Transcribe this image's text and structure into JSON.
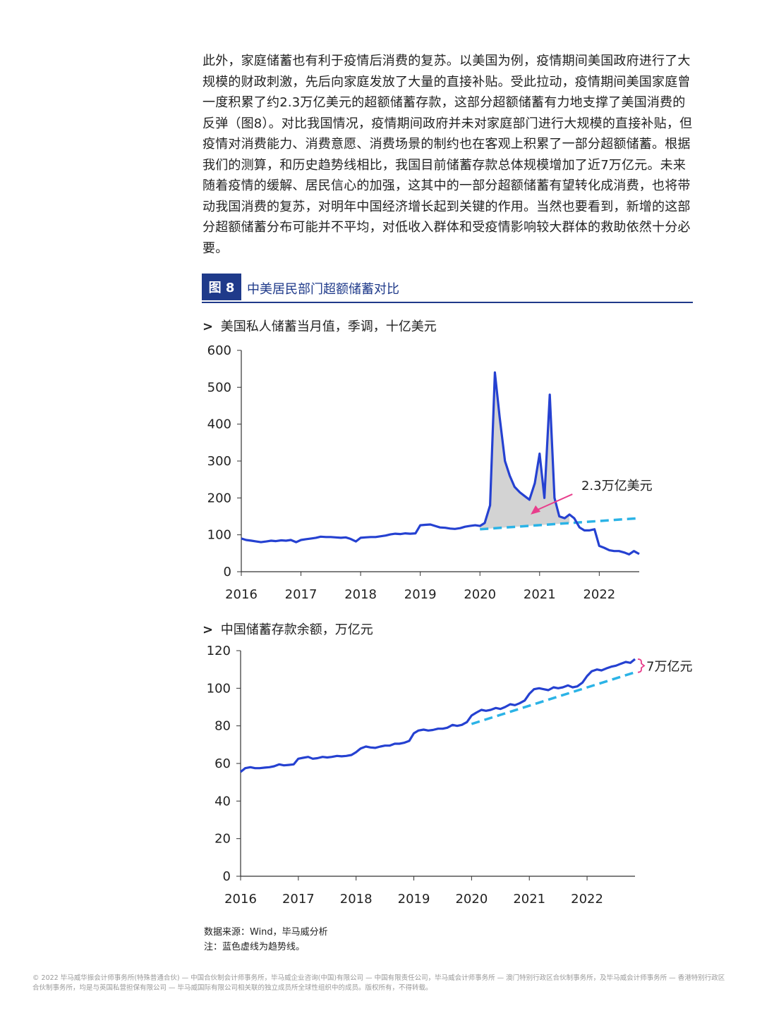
{
  "paragraph": "此外，家庭储蓄也有利于疫情后消费的复苏。以美国为例，疫情期间美国政府进行了大规模的财政刺激，先后向家庭发放了大量的直接补贴。受此拉动，疫情期间美国家庭曾一度积累了约2.3万亿美元的超额储蓄存款，这部分超额储蓄有力地支撑了美国消费的反弹（图8）。对比我国情况，疫情期间政府并未对家庭部门进行大规模的直接补贴，但疫情对消费能力、消费意愿、消费场景的制约也在客观上积累了一部分超额储蓄。根据我们的测算，和历史趋势线相比，我国目前储蓄存款总体规模增加了近7万亿元。未来随着疫情的缓解、居民信心的加强，这其中的一部分超额储蓄有望转化成消费，也将带动我国消费的复苏，对明年中国经济增长起到关键的作用。当然也要看到，新增的这部分超额储蓄分布可能并不平均，对低收入群体和受疫情影响较大群体的救助依然十分必要。",
  "figure": {
    "badge": "图 8",
    "title": "中美居民部门超额储蓄对比"
  },
  "colors": {
    "line": "#2541d1",
    "trend": "#2bb3e6",
    "fill": "#d3d3d3",
    "annot": "#e83e8c",
    "header": "#1f3a8a"
  },
  "chart_data": [
    {
      "type": "line",
      "title": "美国私人储蓄当月值，季调，十亿美元",
      "xlabel": "",
      "ylabel": "",
      "x_ticks": [
        "2016",
        "2017",
        "2018",
        "2019",
        "2020",
        "2021",
        "2022"
      ],
      "y_ticks": [
        "0",
        "100",
        "200",
        "300",
        "400",
        "500",
        "600"
      ],
      "ylim": [
        0,
        600
      ],
      "xlim": [
        2016.0,
        2022.67
      ],
      "annotation": "2.3万亿美元",
      "series": [
        {
          "style": "solid",
          "x": [
            2016.0,
            2016.08,
            2016.17,
            2016.25,
            2016.33,
            2016.42,
            2016.5,
            2016.58,
            2016.67,
            2016.75,
            2016.83,
            2016.92,
            2017.0,
            2017.08,
            2017.17,
            2017.25,
            2017.33,
            2017.42,
            2017.5,
            2017.58,
            2017.67,
            2017.75,
            2017.83,
            2017.92,
            2018.0,
            2018.08,
            2018.17,
            2018.25,
            2018.33,
            2018.42,
            2018.5,
            2018.58,
            2018.67,
            2018.75,
            2018.83,
            2018.92,
            2019.0,
            2019.08,
            2019.17,
            2019.25,
            2019.33,
            2019.42,
            2019.5,
            2019.58,
            2019.67,
            2019.75,
            2019.83,
            2019.92,
            2020.0,
            2020.08,
            2020.17,
            2020.25,
            2020.33,
            2020.42,
            2020.5,
            2020.58,
            2020.67,
            2020.75,
            2020.83,
            2020.92,
            2021.0,
            2021.08,
            2021.17,
            2021.25,
            2021.33,
            2021.42,
            2021.5,
            2021.58,
            2021.67,
            2021.75,
            2021.83,
            2021.92,
            2022.0,
            2022.08,
            2022.17,
            2022.25,
            2022.33,
            2022.42,
            2022.5,
            2022.58,
            2022.67
          ],
          "y": [
            90,
            86,
            84,
            82,
            80,
            82,
            84,
            83,
            85,
            84,
            86,
            80,
            86,
            88,
            90,
            92,
            95,
            94,
            94,
            93,
            92,
            93,
            89,
            82,
            92,
            93,
            94,
            94,
            96,
            98,
            101,
            103,
            102,
            104,
            103,
            104,
            126,
            127,
            128,
            124,
            120,
            119,
            117,
            116,
            118,
            122,
            124,
            126,
            124,
            132,
            180,
            540,
            420,
            300,
            260,
            230,
            215,
            205,
            195,
            240,
            320,
            200,
            480,
            200,
            150,
            145,
            155,
            145,
            120,
            112,
            112,
            115,
            70,
            65,
            58,
            56,
            56,
            52,
            47,
            56,
            48
          ]
        },
        {
          "style": "dashed",
          "x": [
            2020.0,
            2022.67
          ],
          "y": [
            115,
            145
          ]
        }
      ]
    },
    {
      "type": "line",
      "title": "中国储蓄存款余额，万亿元",
      "xlabel": "",
      "ylabel": "",
      "x_ticks": [
        "2016",
        "2017",
        "2018",
        "2019",
        "2020",
        "2021",
        "2022"
      ],
      "y_ticks": [
        "0",
        "20",
        "40",
        "60",
        "80",
        "100",
        "120"
      ],
      "ylim": [
        0,
        120
      ],
      "xlim": [
        2016.0,
        2022.83
      ],
      "annotation": "7万亿元",
      "series": [
        {
          "style": "solid",
          "x": [
            2016.0,
            2016.08,
            2016.17,
            2016.25,
            2016.33,
            2016.42,
            2016.5,
            2016.58,
            2016.67,
            2016.75,
            2016.83,
            2016.92,
            2017.0,
            2017.08,
            2017.17,
            2017.25,
            2017.33,
            2017.42,
            2017.5,
            2017.58,
            2017.67,
            2017.75,
            2017.83,
            2017.92,
            2018.0,
            2018.08,
            2018.17,
            2018.25,
            2018.33,
            2018.42,
            2018.5,
            2018.58,
            2018.67,
            2018.75,
            2018.83,
            2018.92,
            2019.0,
            2019.08,
            2019.17,
            2019.25,
            2019.33,
            2019.42,
            2019.5,
            2019.58,
            2019.67,
            2019.75,
            2019.83,
            2019.92,
            2020.0,
            2020.08,
            2020.17,
            2020.25,
            2020.33,
            2020.42,
            2020.5,
            2020.58,
            2020.67,
            2020.75,
            2020.83,
            2020.92,
            2021.0,
            2021.08,
            2021.17,
            2021.25,
            2021.33,
            2021.42,
            2021.5,
            2021.58,
            2021.67,
            2021.75,
            2021.83,
            2021.92,
            2022.0,
            2022.08,
            2022.17,
            2022.25,
            2022.33,
            2022.42,
            2022.5,
            2022.58,
            2022.67,
            2022.75,
            2022.83
          ],
          "y": [
            55.5,
            57.5,
            58.0,
            57.5,
            57.5,
            57.8,
            58.0,
            58.5,
            59.5,
            59.0,
            59.2,
            59.5,
            62.5,
            63.0,
            63.5,
            62.5,
            62.8,
            63.5,
            63.2,
            63.5,
            64.0,
            63.8,
            64.0,
            64.5,
            66.0,
            68.0,
            69.0,
            68.5,
            68.3,
            69.0,
            69.5,
            69.5,
            70.5,
            70.5,
            71.0,
            72.0,
            76.0,
            77.5,
            78.0,
            77.5,
            77.8,
            78.5,
            78.5,
            79.0,
            80.5,
            80.0,
            80.5,
            82.0,
            85.5,
            87.0,
            88.5,
            88.0,
            88.5,
            89.5,
            89.0,
            90.0,
            91.5,
            91.0,
            92.0,
            93.5,
            97.0,
            99.5,
            100.0,
            99.5,
            99.0,
            100.5,
            100.0,
            100.5,
            101.5,
            100.5,
            101.0,
            103.0,
            106.5,
            109.0,
            110.0,
            109.5,
            110.5,
            111.5,
            112.0,
            113.0,
            114.0,
            113.5,
            115.5
          ]
        },
        {
          "style": "dashed",
          "x": [
            2020.0,
            2022.83
          ],
          "y": [
            81.0,
            108.5
          ]
        }
      ]
    }
  ],
  "source_note": "数据来源：Wind，毕马威分析",
  "trend_note": "注：蓝色虚线为趋势线。",
  "footer": "© 2022 毕马威华振会计师事务所(特殊普通合伙) — 中国合伙制会计师事务所，毕马威企业咨询(中国)有限公司 — 中国有限责任公司，毕马威会计师事务所 — 澳门特别行政区合伙制事务所，及毕马威会计师事务所 — 香港特别行政区合伙制事务所，均是与英国私营担保有限公司 — 毕马威国际有限公司相关联的独立成员所全球性组织中的成员。版权所有，不得转载。"
}
